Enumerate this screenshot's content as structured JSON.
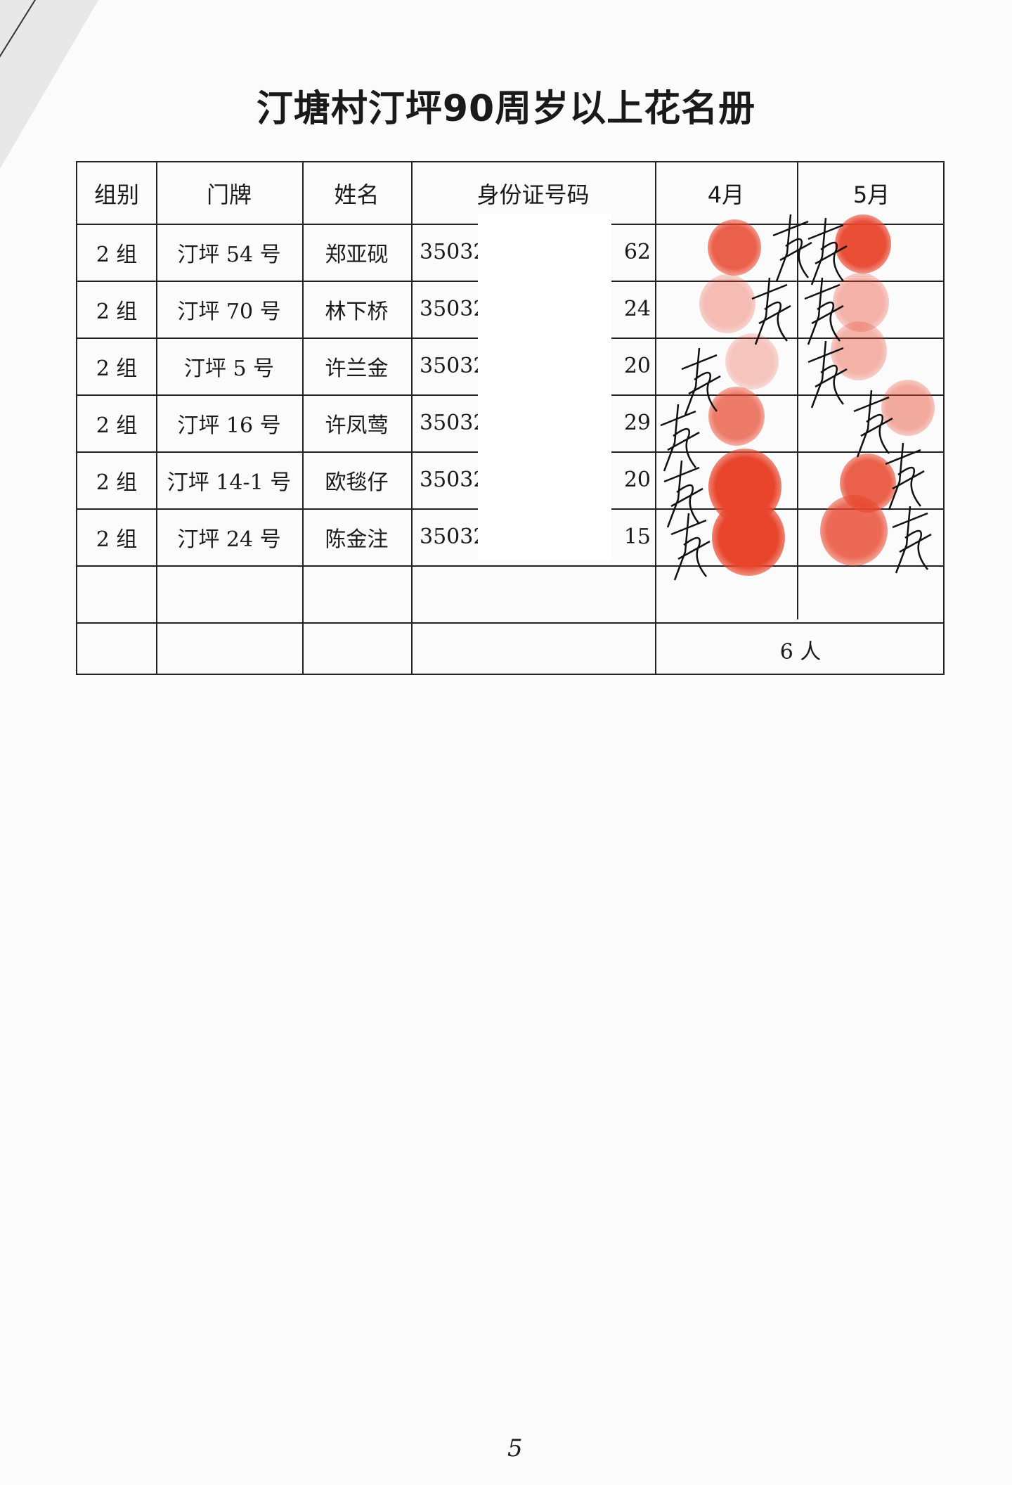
{
  "title": "汀塘村汀坪90周岁以上花名册",
  "table": {
    "headers": [
      "组别",
      "门牌",
      "姓名",
      "身份证号码",
      "4月",
      "5月"
    ],
    "rows": [
      {
        "group": "2 组",
        "address": "汀坪 54 号",
        "name": "郑亚砚",
        "id_start": "35032",
        "id_end": "62"
      },
      {
        "group": "2 组",
        "address": "汀坪 70 号",
        "name": "林下桥",
        "id_start": "35032",
        "id_end": "24"
      },
      {
        "group": "2 组",
        "address": "汀坪 5 号",
        "name": "许兰金",
        "id_start": "35032",
        "id_end": "20"
      },
      {
        "group": "2 组",
        "address": "汀坪 16 号",
        "name": "许凤莺",
        "id_start": "35032",
        "id_end": "29"
      },
      {
        "group": "2 组",
        "address": "汀坪 14-1 号",
        "name": "欧毯仔",
        "id_start": "35032",
        "id_end": "20"
      },
      {
        "group": "2 组",
        "address": "汀坪 24 号",
        "name": "陈金注",
        "id_start": "35032",
        "id_end": "15"
      }
    ],
    "total": "6 人"
  },
  "page_number": "5",
  "colors": {
    "ink": "#1a1a1a",
    "fingerprint": "#e8452c"
  }
}
